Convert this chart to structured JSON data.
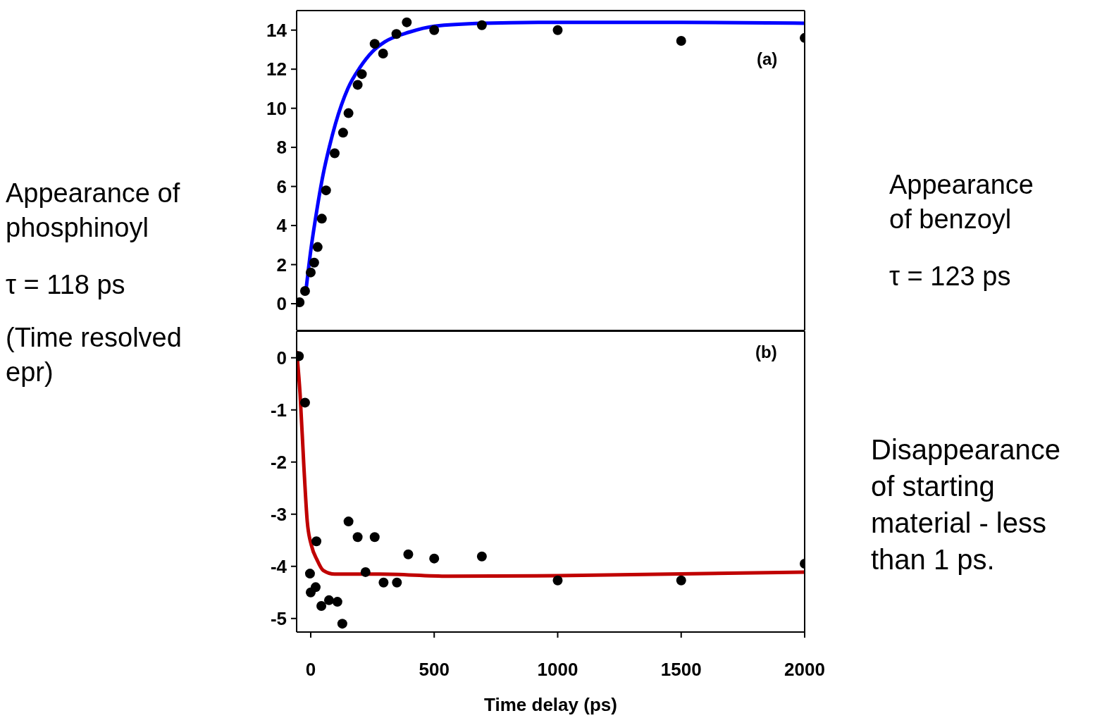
{
  "chart_data": [
    {
      "type": "scatter",
      "xlim": [
        -57,
        2000
      ],
      "xticks": [
        0,
        500,
        1000,
        1500,
        2000
      ],
      "ylim": [
        -1.37,
        15
      ],
      "yticks": [
        0,
        2,
        4,
        6,
        8,
        10,
        12,
        14
      ],
      "tick_labels": "y",
      "annotations": [
        "(a)",
        "Appearance of phosphinoyl",
        "τ = 118 ps",
        "(Time resolved epr)",
        "Appearance of benzoyl",
        "τ = 123 ps"
      ],
      "series": [
        {
          "marker": "circle",
          "color": "#000000",
          "x": [
            -45,
            -23,
            0,
            14,
            28,
            45,
            62,
            97,
            131,
            153,
            190,
            207,
            259,
            293,
            347,
            389,
            500,
            693,
            1000,
            1500,
            2000
          ],
          "values": [
            0.07,
            0.65,
            1.6,
            2.1,
            2.9,
            4.35,
            5.8,
            7.7,
            8.75,
            9.75,
            11.2,
            11.75,
            13.3,
            12.8,
            13.8,
            14.4,
            14.0,
            14.25,
            14.0,
            13.45,
            13.6
          ]
        },
        {
          "type": "line",
          "color": "#0000ff",
          "x": [
            -20,
            0,
            25,
            50,
            75,
            100,
            150,
            200,
            250,
            300,
            400,
            500,
            700,
            1000,
            1500,
            2000
          ],
          "values": [
            0.6,
            2.7,
            4.8,
            6.6,
            8.0,
            9.2,
            11.0,
            12.1,
            12.9,
            13.4,
            13.9,
            14.2,
            14.35,
            14.4,
            14.4,
            14.35
          ]
        }
      ]
    },
    {
      "type": "scatter",
      "xlim": [
        -57,
        2000
      ],
      "xticks": [
        0,
        500,
        1000,
        1500,
        2000
      ],
      "ylim": [
        -5.26,
        0.51
      ],
      "yticks": [
        -5,
        -4,
        -3,
        -2,
        -1,
        0
      ],
      "xlabel": "Time delay (ps)",
      "annotations": [
        "(b)",
        "Disappearance of starting material - less than 1 ps."
      ],
      "series": [
        {
          "marker": "circle",
          "color": "#000000",
          "x": [
            -48,
            -23,
            -3,
            0,
            20,
            23,
            43,
            74,
            108,
            128,
            153,
            190,
            222,
            259,
            295,
            349,
            395,
            500,
            693,
            1000,
            1500,
            2000
          ],
          "values": [
            0.03,
            -0.86,
            -4.14,
            -4.5,
            -4.4,
            -3.52,
            -4.76,
            -4.65,
            -4.68,
            -5.1,
            -3.14,
            -3.44,
            -4.11,
            -3.44,
            -4.31,
            -4.31,
            -3.77,
            -3.85,
            -3.81,
            -4.27,
            -4.27,
            -3.95
          ]
        },
        {
          "type": "line",
          "color": "#c00000",
          "x": [
            -57,
            -43,
            -28,
            -14,
            3,
            26,
            51,
            97,
            281,
            557,
            1000,
            2000
          ],
          "values": [
            0.13,
            -0.7,
            -2.06,
            -3.14,
            -3.6,
            -3.88,
            -4.08,
            -4.15,
            -4.15,
            -4.19,
            -4.18,
            -4.11
          ]
        }
      ]
    }
  ]
}
